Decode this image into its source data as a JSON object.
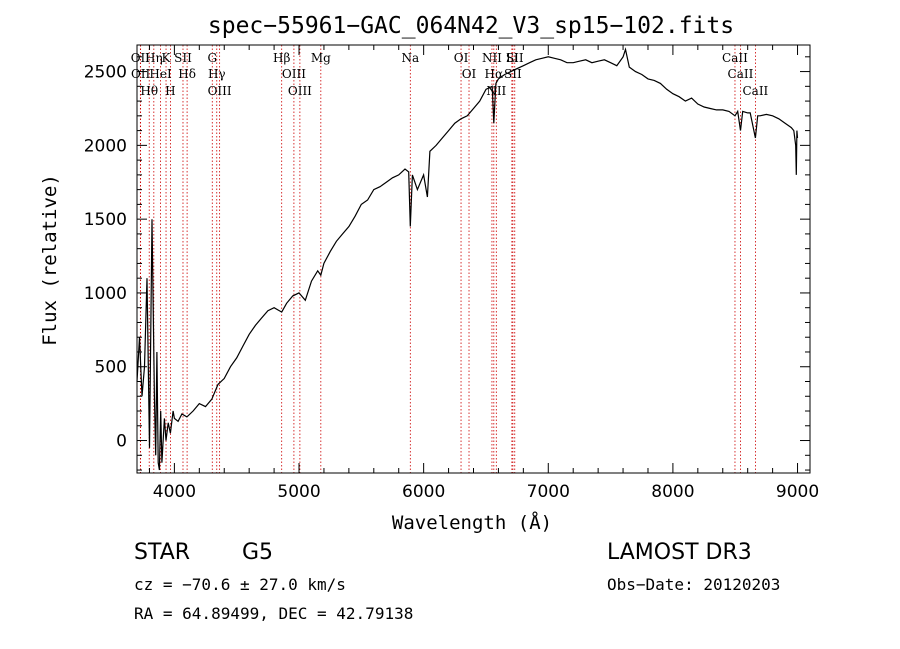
{
  "chart_data": {
    "type": "line",
    "title": "spec−55961−GAC_064N42_V3_sp15−102.fits",
    "xlabel": "Wavelength (Å)",
    "ylabel": "Flux (relative)",
    "xlim": [
      3700,
      9100
    ],
    "ylim": [
      -220,
      2680
    ],
    "xticks": [
      4000,
      5000,
      6000,
      7000,
      8000,
      9000
    ],
    "yticks": [
      0,
      500,
      1000,
      1500,
      2000,
      2500
    ],
    "series": [
      {
        "name": "spectrum",
        "x": [
          3700,
          3720,
          3740,
          3760,
          3780,
          3800,
          3820,
          3840,
          3850,
          3860,
          3870,
          3880,
          3890,
          3900,
          3920,
          3933,
          3950,
          3968,
          3990,
          4000,
          4030,
          4060,
          4100,
          4150,
          4200,
          4250,
          4300,
          4350,
          4400,
          4450,
          4500,
          4550,
          4600,
          4650,
          4700,
          4750,
          4800,
          4861,
          4900,
          4950,
          5000,
          5050,
          5100,
          5150,
          5175,
          5200,
          5250,
          5300,
          5350,
          5400,
          5450,
          5500,
          5550,
          5600,
          5650,
          5700,
          5750,
          5800,
          5850,
          5880,
          5893,
          5910,
          5950,
          6000,
          6030,
          6050,
          6100,
          6150,
          6200,
          6250,
          6300,
          6350,
          6400,
          6450,
          6500,
          6550,
          6563,
          6580,
          6600,
          6650,
          6700,
          6750,
          6800,
          6850,
          6900,
          6950,
          7000,
          7050,
          7100,
          7150,
          7200,
          7250,
          7300,
          7350,
          7400,
          7450,
          7500,
          7550,
          7600,
          7620,
          7650,
          7700,
          7750,
          7800,
          7850,
          7900,
          7950,
          8000,
          8050,
          8100,
          8150,
          8200,
          8250,
          8300,
          8350,
          8400,
          8450,
          8498,
          8520,
          8542,
          8560,
          8600,
          8620,
          8662,
          8680,
          8700,
          8750,
          8800,
          8850,
          8900,
          8950,
          8970,
          8985,
          8990,
          8995,
          9000
        ],
        "values": [
          400,
          700,
          300,
          500,
          1100,
          -50,
          1500,
          300,
          -100,
          600,
          -150,
          -200,
          200,
          -150,
          150,
          0,
          120,
          50,
          200,
          150,
          130,
          180,
          160,
          200,
          250,
          230,
          280,
          380,
          420,
          500,
          560,
          640,
          720,
          780,
          830,
          880,
          900,
          870,
          930,
          980,
          1000,
          950,
          1080,
          1150,
          1120,
          1200,
          1280,
          1350,
          1400,
          1450,
          1520,
          1600,
          1630,
          1700,
          1720,
          1750,
          1780,
          1800,
          1840,
          1820,
          1450,
          1800,
          1700,
          1800,
          1650,
          1960,
          2000,
          2050,
          2100,
          2150,
          2180,
          2200,
          2250,
          2300,
          2380,
          2400,
          2150,
          2420,
          2450,
          2480,
          2500,
          2520,
          2540,
          2560,
          2580,
          2590,
          2600,
          2590,
          2580,
          2560,
          2560,
          2570,
          2580,
          2560,
          2570,
          2580,
          2560,
          2540,
          2600,
          2650,
          2530,
          2500,
          2480,
          2450,
          2440,
          2420,
          2380,
          2350,
          2330,
          2300,
          2320,
          2280,
          2260,
          2250,
          2240,
          2240,
          2230,
          2200,
          2230,
          2100,
          2230,
          2220,
          2220,
          2050,
          2200,
          2200,
          2210,
          2200,
          2180,
          2150,
          2120,
          2100,
          2000,
          1800,
          2100,
          2050
        ]
      }
    ],
    "lines": [
      {
        "label": "Hθ",
        "x": 3798
      },
      {
        "label": "OII",
        "x": 3727
      },
      {
        "label": "OII",
        "x": 3729
      },
      {
        "label": "HeI",
        "x": 3889
      },
      {
        "label": "K",
        "x": 3933
      },
      {
        "label": "Hη",
        "x": 3835
      },
      {
        "label": "SII",
        "x": 4069
      },
      {
        "label": "H",
        "x": 3968
      },
      {
        "label": "Hδ",
        "x": 4102
      },
      {
        "label": "OIII",
        "x": 4363
      },
      {
        "label": "Hγ",
        "x": 4340
      },
      {
        "label": "G",
        "x": 4304
      },
      {
        "label": "Hβ",
        "x": 4861
      },
      {
        "label": "OIII",
        "x": 4959
      },
      {
        "label": "OIII",
        "x": 5007
      },
      {
        "label": "Mg",
        "x": 5175
      },
      {
        "label": "Na",
        "x": 5893
      },
      {
        "label": "OI",
        "x": 6300
      },
      {
        "label": "OI",
        "x": 6364
      },
      {
        "label": "Hα",
        "x": 6563
      },
      {
        "label": "SII",
        "x": 6716
      },
      {
        "label": "NII",
        "x": 6548
      },
      {
        "label": "NII",
        "x": 6583
      },
      {
        "label": "Li",
        "x": 6708
      },
      {
        "label": "SII",
        "x": 6731
      },
      {
        "label": "CaII",
        "x": 8498
      },
      {
        "label": "CaII",
        "x": 8542
      },
      {
        "label": "CaII",
        "x": 8662
      }
    ],
    "line_color": "#cc0000",
    "grid": false
  },
  "info": {
    "object_class": "STAR",
    "subclass": "G5",
    "survey": "LAMOST  DR3",
    "cz": "cz = −70.6 ± 27.0 km/s",
    "obs_date": "Obs−Date: 20120203",
    "coords": "RA =  64.89499, DEC =  42.79138"
  }
}
